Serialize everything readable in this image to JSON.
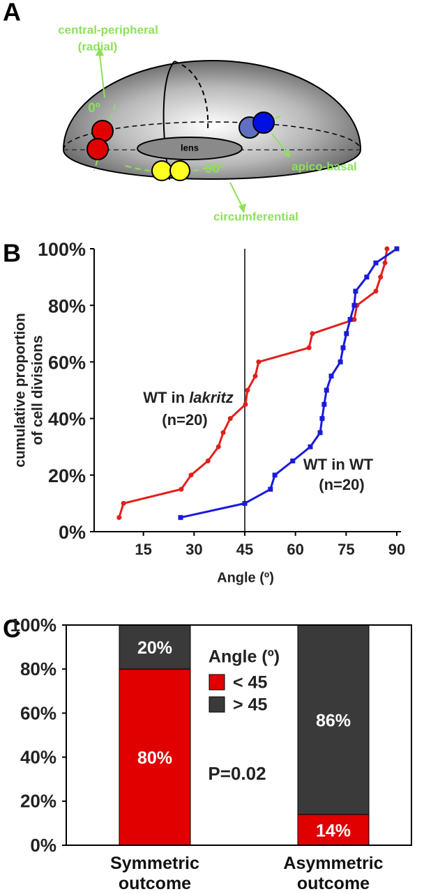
{
  "panel_labels": [
    "A",
    "B",
    "C"
  ],
  "diagram": {
    "labels": {
      "axis_radial": "central-peripheral",
      "axis_radial_sub": "(radial)",
      "angle_zero": "0º",
      "lens": "lens",
      "axis_apicobasal": "apico-basal",
      "angle_ninety": "90º",
      "axis_circumferential": "circumferential"
    }
  },
  "chart_data": [
    {
      "type": "line",
      "y_label": [
        "cumulative proportion",
        "of cell divisions"
      ],
      "x_label": "Angle (º)",
      "xlim": [
        0,
        90
      ],
      "xticks": [
        15,
        30,
        45,
        60,
        75,
        90
      ],
      "ylim": [
        0,
        100
      ],
      "yticks": [
        {
          "value": 0,
          "label": "0%"
        },
        {
          "value": 20,
          "label": "20%"
        },
        {
          "value": 40,
          "label": "40%"
        },
        {
          "value": 60,
          "label": "60%"
        },
        {
          "value": 80,
          "label": "80%"
        },
        {
          "value": 100,
          "label": "100%"
        }
      ],
      "vline": 45,
      "series": [
        {
          "color": "#e0201b",
          "marker": "circle",
          "label": [
            "WT in ",
            "lakritz",
            "(n=20)"
          ],
          "x": [
            7.8,
            9.1,
            26.2,
            29.1,
            34.1,
            37.2,
            38.6,
            40.7,
            45.2,
            45.8,
            48.1,
            49.1,
            64.0,
            65.0,
            77.4,
            78.2,
            83.8,
            85.2,
            86.5,
            87.1
          ],
          "values": [
            5,
            10,
            15,
            20,
            25,
            30,
            35,
            40,
            45,
            50,
            55,
            60,
            65,
            70,
            75,
            80,
            85,
            90,
            95,
            100
          ]
        },
        {
          "color": "#1a1adc",
          "marker": "square",
          "label": [
            "WT in WT",
            "",
            "(n=20)"
          ],
          "x": [
            26.0,
            45.0,
            52.6,
            53.9,
            59.2,
            64.4,
            67.3,
            67.9,
            68.5,
            69.2,
            70.6,
            73.3,
            74.1,
            75.1,
            76.2,
            77.4,
            77.8,
            81.1,
            83.8,
            90.0
          ],
          "values": [
            5,
            10,
            15,
            20,
            25,
            30,
            35,
            40,
            45,
            50,
            55,
            60,
            65,
            70,
            75,
            80,
            85,
            90,
            95,
            100
          ]
        }
      ]
    },
    {
      "type": "stacked_bar",
      "categories": [
        "Symmetric outcome",
        "Asymmetric outcome"
      ],
      "ylim": [
        0,
        100
      ],
      "yticks": [
        {
          "value": 0,
          "label": "0%"
        },
        {
          "value": 20,
          "label": "20%"
        },
        {
          "value": 40,
          "label": "40%"
        },
        {
          "value": 60,
          "label": "60%"
        },
        {
          "value": 80,
          "label": "80%"
        },
        {
          "value": 100,
          "label": "100%"
        }
      ],
      "legend_title": "Angle (º)",
      "annotation": "P=0.02",
      "series": [
        {
          "name": "< 45",
          "color": "#e00000",
          "values": [
            80,
            14
          ],
          "value_labels": [
            "80%",
            "14%"
          ]
        },
        {
          "name": "> 45",
          "color": "#3a3a3a",
          "values": [
            20,
            86
          ],
          "value_labels": [
            "20%",
            "86%"
          ]
        }
      ]
    }
  ]
}
